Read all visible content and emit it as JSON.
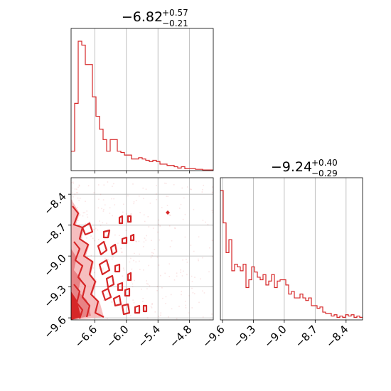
{
  "chart_data": {
    "type": "corner",
    "color": "#d62728",
    "panels": [
      {
        "id": "hist-x",
        "type": "histogram",
        "title": {
          "median": "−6.82",
          "upper": "+0.57",
          "lower": "−0.21"
        },
        "xlim": [
          -7.05,
          -4.35
        ],
        "xticks": [
          -6.6,
          -6.0,
          -5.4,
          -4.8
        ],
        "bin_edges_start": -7.05,
        "bin_width": 0.0675,
        "counts": [
          0.15,
          0.52,
          1.0,
          0.97,
          0.82,
          0.82,
          0.57,
          0.42,
          0.32,
          0.24,
          0.15,
          0.24,
          0.24,
          0.15,
          0.14,
          0.12,
          0.12,
          0.09,
          0.09,
          0.1,
          0.09,
          0.08,
          0.07,
          0.08,
          0.07,
          0.05,
          0.05,
          0.04,
          0.04,
          0.03,
          0.02,
          0.03,
          0.015,
          0.015,
          0.015,
          0.01,
          0.01,
          0.005,
          0.005,
          0.005
        ]
      },
      {
        "id": "hist-y",
        "type": "histogram",
        "title": {
          "median": "−9.24",
          "upper": "+0.40",
          "lower": "−0.29"
        },
        "xlim": [
          -9.62,
          -8.24
        ],
        "xticks": [
          -9.6,
          -9.3,
          -9.0,
          -8.7,
          -8.4
        ],
        "xtick_labels": [
          "−9.6",
          "−9.3",
          "−9.0",
          "−8.7",
          "−8.4"
        ],
        "bin_edges_start": -9.62,
        "bin_width": 0.0276,
        "counts": [
          1.0,
          0.75,
          0.52,
          0.62,
          0.38,
          0.43,
          0.41,
          0.38,
          0.43,
          0.25,
          0.31,
          0.41,
          0.37,
          0.33,
          0.31,
          0.35,
          0.27,
          0.3,
          0.35,
          0.25,
          0.3,
          0.31,
          0.31,
          0.27,
          0.2,
          0.22,
          0.17,
          0.17,
          0.2,
          0.17,
          0.15,
          0.17,
          0.11,
          0.11,
          0.09,
          0.1,
          0.06,
          0.05,
          0.05,
          0.03,
          0.04,
          0.02,
          0.03,
          0.02,
          0.04,
          0.03,
          0.04,
          0.02,
          0.03,
          0.02
        ]
      },
      {
        "id": "scatter-xy",
        "type": "contour",
        "xlim": [
          -7.05,
          -4.35
        ],
        "ylim": [
          -9.62,
          -8.24
        ],
        "xticks": [
          -6.6,
          -6.0,
          -5.4,
          -4.8
        ],
        "xtick_labels": [
          "−6.6",
          "−6.0",
          "−5.4",
          "−4.8"
        ],
        "yticks": [
          -8.4,
          -8.7,
          -9.0,
          -9.3,
          -9.6
        ],
        "ytick_labels": [
          "−8.4",
          "−8.7",
          "−9.0",
          "−9.3",
          "−9.6"
        ],
        "grid": true
      }
    ]
  }
}
